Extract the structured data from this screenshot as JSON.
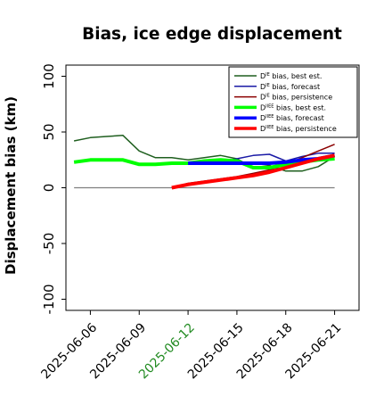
{
  "chart_data": {
    "type": "line",
    "title": "Bias, ice edge displacement",
    "xlabel": "",
    "ylabel": "Displacement bias (km)",
    "ylim": [
      -110,
      110
    ],
    "yticks": [
      -100,
      -50,
      0,
      50,
      100
    ],
    "xlim": [
      "2025-06-04T12:00",
      "2025-06-22T12:00"
    ],
    "xticks": [
      "2025-06-06",
      "2025-06-09",
      "2025-06-12",
      "2025-06-15",
      "2025-06-18",
      "2025-06-21"
    ],
    "highlighted_tick": "2025-06-12",
    "highlight_color": "#228B22",
    "zero_line": 0,
    "grid": false,
    "legend_position": "top-right",
    "series": [
      {
        "name": "D",
        "superscript": "IE",
        "suffix": " bias, best est.",
        "color": "#1f5f1f",
        "width": 1.5,
        "x": [
          "2025-06-05",
          "2025-06-06",
          "2025-06-07",
          "2025-06-08",
          "2025-06-09",
          "2025-06-10",
          "2025-06-11",
          "2025-06-12",
          "2025-06-13",
          "2025-06-14",
          "2025-06-15",
          "2025-06-16",
          "2025-06-17",
          "2025-06-18",
          "2025-06-19",
          "2025-06-20",
          "2025-06-21"
        ],
        "values": [
          42,
          45,
          46,
          47,
          33,
          27,
          27,
          25,
          27,
          29,
          26,
          18,
          20,
          15,
          15,
          19,
          28
        ]
      },
      {
        "name": "D",
        "superscript": "IE",
        "suffix": " bias, forecast",
        "color": "#1a1aa6",
        "width": 1.5,
        "x": [
          "2025-06-12",
          "2025-06-13",
          "2025-06-14",
          "2025-06-15",
          "2025-06-16",
          "2025-06-17",
          "2025-06-18",
          "2025-06-19",
          "2025-06-20",
          "2025-06-21"
        ],
        "values": [
          22,
          22,
          23,
          26,
          29,
          30,
          24,
          28,
          31,
          31
        ]
      },
      {
        "name": "D",
        "superscript": "IE",
        "suffix": " bias, persistence",
        "color": "#8b0000",
        "width": 1.5,
        "x": [
          "2025-06-11",
          "2025-06-12",
          "2025-06-13",
          "2025-06-14",
          "2025-06-15",
          "2025-06-16",
          "2025-06-17",
          "2025-06-18",
          "2025-06-19",
          "2025-06-20",
          "2025-06-21"
        ],
        "values": [
          0,
          4,
          6,
          8,
          10,
          13,
          16,
          21,
          27,
          33,
          39
        ]
      },
      {
        "name": "D",
        "superscript": "IIEE",
        "suffix": " bias, best est.",
        "color": "#00ff00",
        "width": 4,
        "x": [
          "2025-06-05",
          "2025-06-06",
          "2025-06-07",
          "2025-06-08",
          "2025-06-09",
          "2025-06-10",
          "2025-06-11",
          "2025-06-12",
          "2025-06-13",
          "2025-06-14",
          "2025-06-15",
          "2025-06-16",
          "2025-06-17",
          "2025-06-18",
          "2025-06-19",
          "2025-06-20",
          "2025-06-21"
        ],
        "values": [
          23,
          25,
          25,
          25,
          21,
          21,
          22,
          22,
          24,
          25,
          24,
          18,
          18,
          21,
          23,
          25,
          26
        ]
      },
      {
        "name": "D",
        "superscript": "IIEE",
        "suffix": " bias, forecast",
        "color": "#0000ff",
        "width": 4,
        "x": [
          "2025-06-12",
          "2025-06-13",
          "2025-06-14",
          "2025-06-15",
          "2025-06-16",
          "2025-06-17",
          "2025-06-18",
          "2025-06-19",
          "2025-06-20",
          "2025-06-21"
        ],
        "values": [
          22,
          22,
          22,
          22,
          22,
          22,
          23,
          25,
          26,
          29
        ]
      },
      {
        "name": "D",
        "superscript": "IIEE",
        "suffix": " bias, persistence",
        "color": "#ff0000",
        "width": 4,
        "x": [
          "2025-06-11",
          "2025-06-12",
          "2025-06-13",
          "2025-06-14",
          "2025-06-15",
          "2025-06-16",
          "2025-06-17",
          "2025-06-18",
          "2025-06-19",
          "2025-06-20",
          "2025-06-21"
        ],
        "values": [
          0,
          3,
          5,
          7,
          9,
          11,
          14,
          18,
          22,
          26,
          29
        ]
      }
    ]
  }
}
